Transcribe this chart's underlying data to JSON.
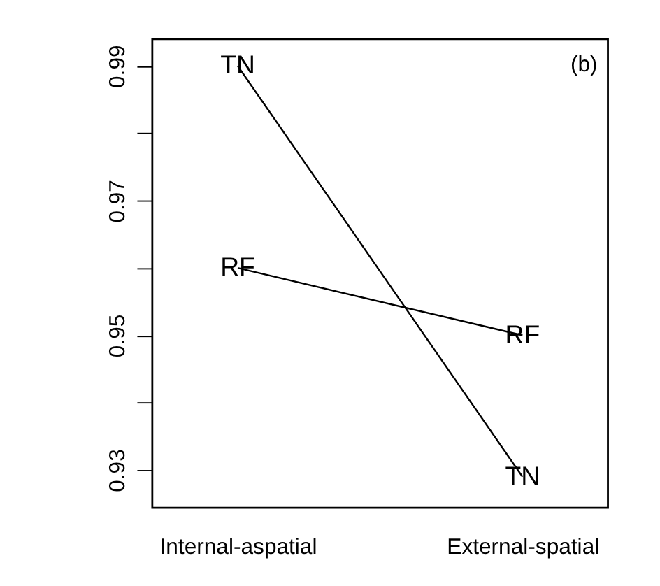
{
  "chart_data": {
    "type": "line",
    "categories": [
      "Internal-aspatial",
      "External-spatial"
    ],
    "series": [
      {
        "name": "TN",
        "color": "#000000",
        "values": [
          0.99,
          0.929
        ]
      },
      {
        "name": "RF",
        "color": "#000000",
        "values": [
          0.96,
          0.95
        ]
      }
    ],
    "ylim": [
      0.9244,
      0.994
    ],
    "yticks": [
      0.93,
      {
        "value": 0.94,
        "label": null
      },
      0.95,
      {
        "value": 0.96,
        "label": null
      },
      0.97,
      {
        "value": 0.98,
        "label": null
      },
      0.99
    ],
    "grid": false,
    "line_style": "solid",
    "annotations": [
      "(b)"
    ]
  }
}
